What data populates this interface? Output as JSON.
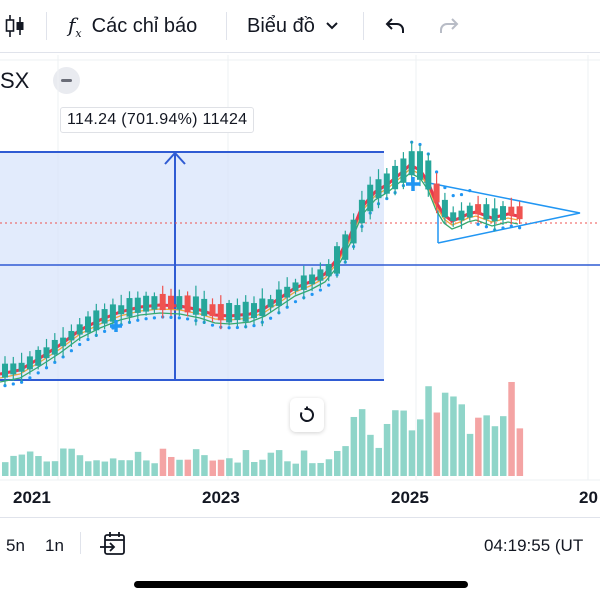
{
  "toolbar": {
    "indicators_label": "Các chỉ báo",
    "chart_type_label": "Biểu đồ"
  },
  "symbol": {
    "partial_text": "SX"
  },
  "measure": {
    "label": "114.24 (701.94%) 11424"
  },
  "x_axis": {
    "labels": [
      "2021",
      "2023",
      "2025",
      "20"
    ]
  },
  "bottom": {
    "range_5y": "5n",
    "range_1y": "1n",
    "time": "04:19:55 (UT"
  },
  "colors": {
    "up": "#26a69a",
    "down": "#ef5350",
    "volume_up": "#8fd5c9",
    "volume_down": "#f4a4a4",
    "measure_fill": "#d6e3fb",
    "measure_line": "#2f5bd3",
    "ma_fast": "#e8384f",
    "ma_mid": "#f0a33a",
    "ma_slow": "#37a86b",
    "psar": "#2196f3"
  },
  "chart_data": {
    "type": "candlestick",
    "x_ticks": [
      "2021",
      "2023",
      "2025",
      "20"
    ],
    "y_scale": "log",
    "overlays": [
      "moving averages",
      "parabolic SAR",
      "triangle pattern",
      "measure range"
    ]
  }
}
